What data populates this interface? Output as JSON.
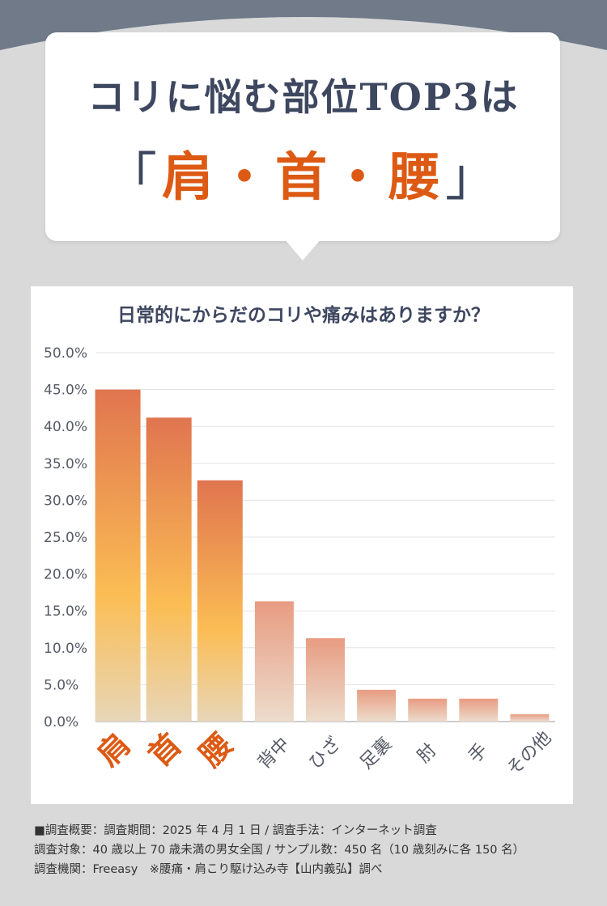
{
  "header": {
    "headline": "コリに悩む部位TOP3は",
    "highlight_open": "「",
    "highlight_text": "肩・首・腰",
    "highlight_close": "」"
  },
  "colors": {
    "background": "#d9d9d9",
    "top_band": "#707a88",
    "headline": "#3e4760",
    "accent": "#dd5a14",
    "bar_top3_top": "#e0754f",
    "bar_top3_mid": "#fbbd54",
    "bar_top3_bottom": "#e7d6b8",
    "bar_rest_top": "#e89c82",
    "bar_rest_bottom": "#ecdccc"
  },
  "chart_data": {
    "type": "bar",
    "title": "日常的にからだのコリや痛みはありますか？",
    "categories": [
      "肩",
      "首",
      "腰",
      "背中",
      "ひざ",
      "足裏",
      "肘",
      "手",
      "その他"
    ],
    "values": [
      45.0,
      41.2,
      32.7,
      16.3,
      11.3,
      4.3,
      3.1,
      3.1,
      1.0
    ],
    "highlight_count": 3,
    "ylim": [
      0,
      50
    ],
    "yticks": [
      "0.0%",
      "5.0%",
      "10.0%",
      "15.0%",
      "20.0%",
      "25.0%",
      "30.0%",
      "35.0%",
      "40.0%",
      "45.0%",
      "50.0%"
    ],
    "grid": true,
    "legend": "none",
    "xlabel": "",
    "ylabel": ""
  },
  "footnote": {
    "line1": "■調査概要：調査期間：2025 年 4 月 1 日 / 調査手法：インターネット調査",
    "line2": "調査対象：40 歳以上 70 歳未満の男女全国 / サンプル数：450 名（10 歳刻みに各 150 名）",
    "line3": "調査機関：Freeasy　※腰痛・肩こり駆け込み寺【山内義弘】調べ"
  }
}
